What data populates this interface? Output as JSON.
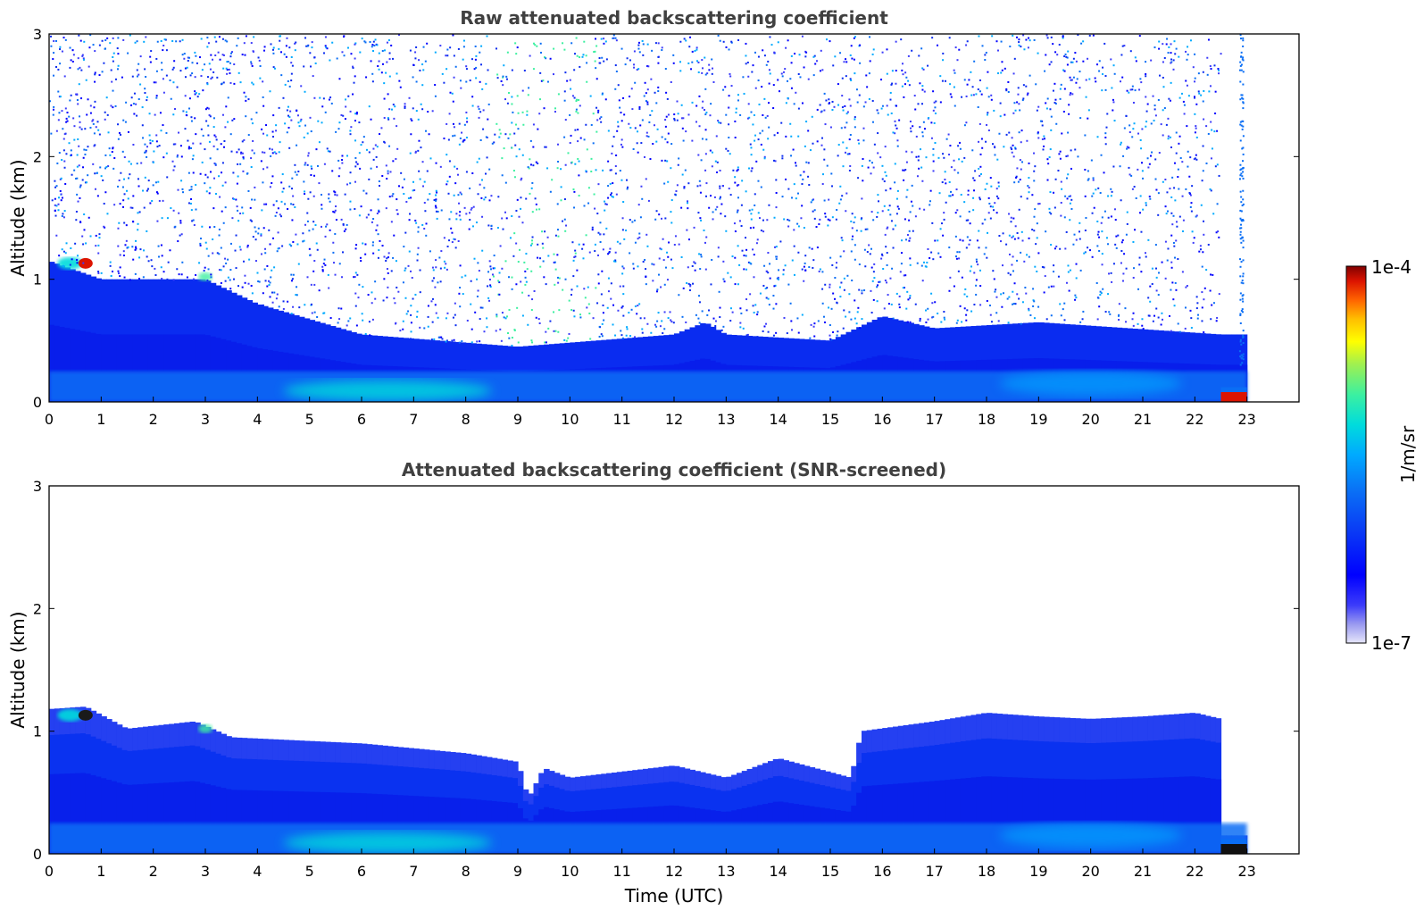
{
  "chart_data": [
    {
      "type": "heatmap",
      "title": "Raw attenuated backscattering coefficient",
      "xlabel": "",
      "ylabel": "Altitude (km)",
      "xlim": [
        0,
        24
      ],
      "ylim": [
        0,
        3
      ],
      "x_ticks": [
        "0",
        "1",
        "2",
        "3",
        "4",
        "5",
        "6",
        "7",
        "8",
        "9",
        "10",
        "11",
        "12",
        "13",
        "14",
        "15",
        "16",
        "17",
        "18",
        "19",
        "20",
        "21",
        "22",
        "23"
      ],
      "y_ticks": [
        "0",
        "1",
        "2",
        "3"
      ],
      "data_end_time": 23,
      "boundary_layer_top_km": [
        [
          0,
          1.15
        ],
        [
          1,
          1.0
        ],
        [
          3,
          1.0
        ],
        [
          4,
          0.8
        ],
        [
          6,
          0.55
        ],
        [
          9,
          0.45
        ],
        [
          12,
          0.55
        ],
        [
          12.6,
          0.65
        ],
        [
          13,
          0.55
        ],
        [
          15,
          0.5
        ],
        [
          16,
          0.7
        ],
        [
          17,
          0.6
        ],
        [
          19,
          0.65
        ],
        [
          22.5,
          0.55
        ]
      ],
      "noise": "strong noise above boundary layer up to 3 km",
      "high_values": [
        {
          "time": 0.7,
          "altitude_km": 1.15,
          "level": "1e-4"
        },
        {
          "time": 22.8,
          "altitude_km": 0.05,
          "level": "1e-4"
        }
      ]
    },
    {
      "type": "heatmap",
      "title": "Attenuated backscattering coefficient (SNR-screened)",
      "xlabel": "Time (UTC)",
      "ylabel": "Altitude (km)",
      "xlim": [
        0,
        24
      ],
      "ylim": [
        0,
        3
      ],
      "x_ticks": [
        "0",
        "1",
        "2",
        "3",
        "4",
        "5",
        "6",
        "7",
        "8",
        "9",
        "10",
        "11",
        "12",
        "13",
        "14",
        "15",
        "16",
        "17",
        "18",
        "19",
        "20",
        "21",
        "22",
        "23"
      ],
      "y_ticks": [
        "0",
        "1",
        "2",
        "3"
      ],
      "data_end_time": 23,
      "screened_top_km": [
        [
          0,
          1.18
        ],
        [
          0.7,
          1.2
        ],
        [
          1.5,
          1.02
        ],
        [
          2.8,
          1.08
        ],
        [
          3.5,
          0.95
        ],
        [
          6,
          0.9
        ],
        [
          8,
          0.82
        ],
        [
          9,
          0.75
        ],
        [
          9.2,
          0.45
        ],
        [
          9.5,
          0.7
        ],
        [
          10,
          0.62
        ],
        [
          12,
          0.72
        ],
        [
          13,
          0.62
        ],
        [
          14,
          0.78
        ],
        [
          15.4,
          0.62
        ],
        [
          15.6,
          1.0
        ],
        [
          17,
          1.08
        ],
        [
          18,
          1.15
        ],
        [
          19,
          1.12
        ],
        [
          20,
          1.1
        ],
        [
          21,
          1.12
        ],
        [
          22,
          1.15
        ],
        [
          22.5,
          1.1
        ],
        [
          22.55,
          0.15
        ],
        [
          23,
          0.15
        ]
      ]
    }
  ],
  "colorbar": {
    "label": "1/m/sr",
    "max_label": "1e-4",
    "min_label": "1e-7",
    "colors": [
      "#e6e6fa",
      "#9a9af0",
      "#3c3cfa",
      "#0000ff",
      "#0a3cf5",
      "#0a6ef5",
      "#00aaff",
      "#00dcdc",
      "#3cf0a0",
      "#a0f050",
      "#ffff00",
      "#ffbe00",
      "#ff6400",
      "#dc1400",
      "#800000"
    ]
  }
}
